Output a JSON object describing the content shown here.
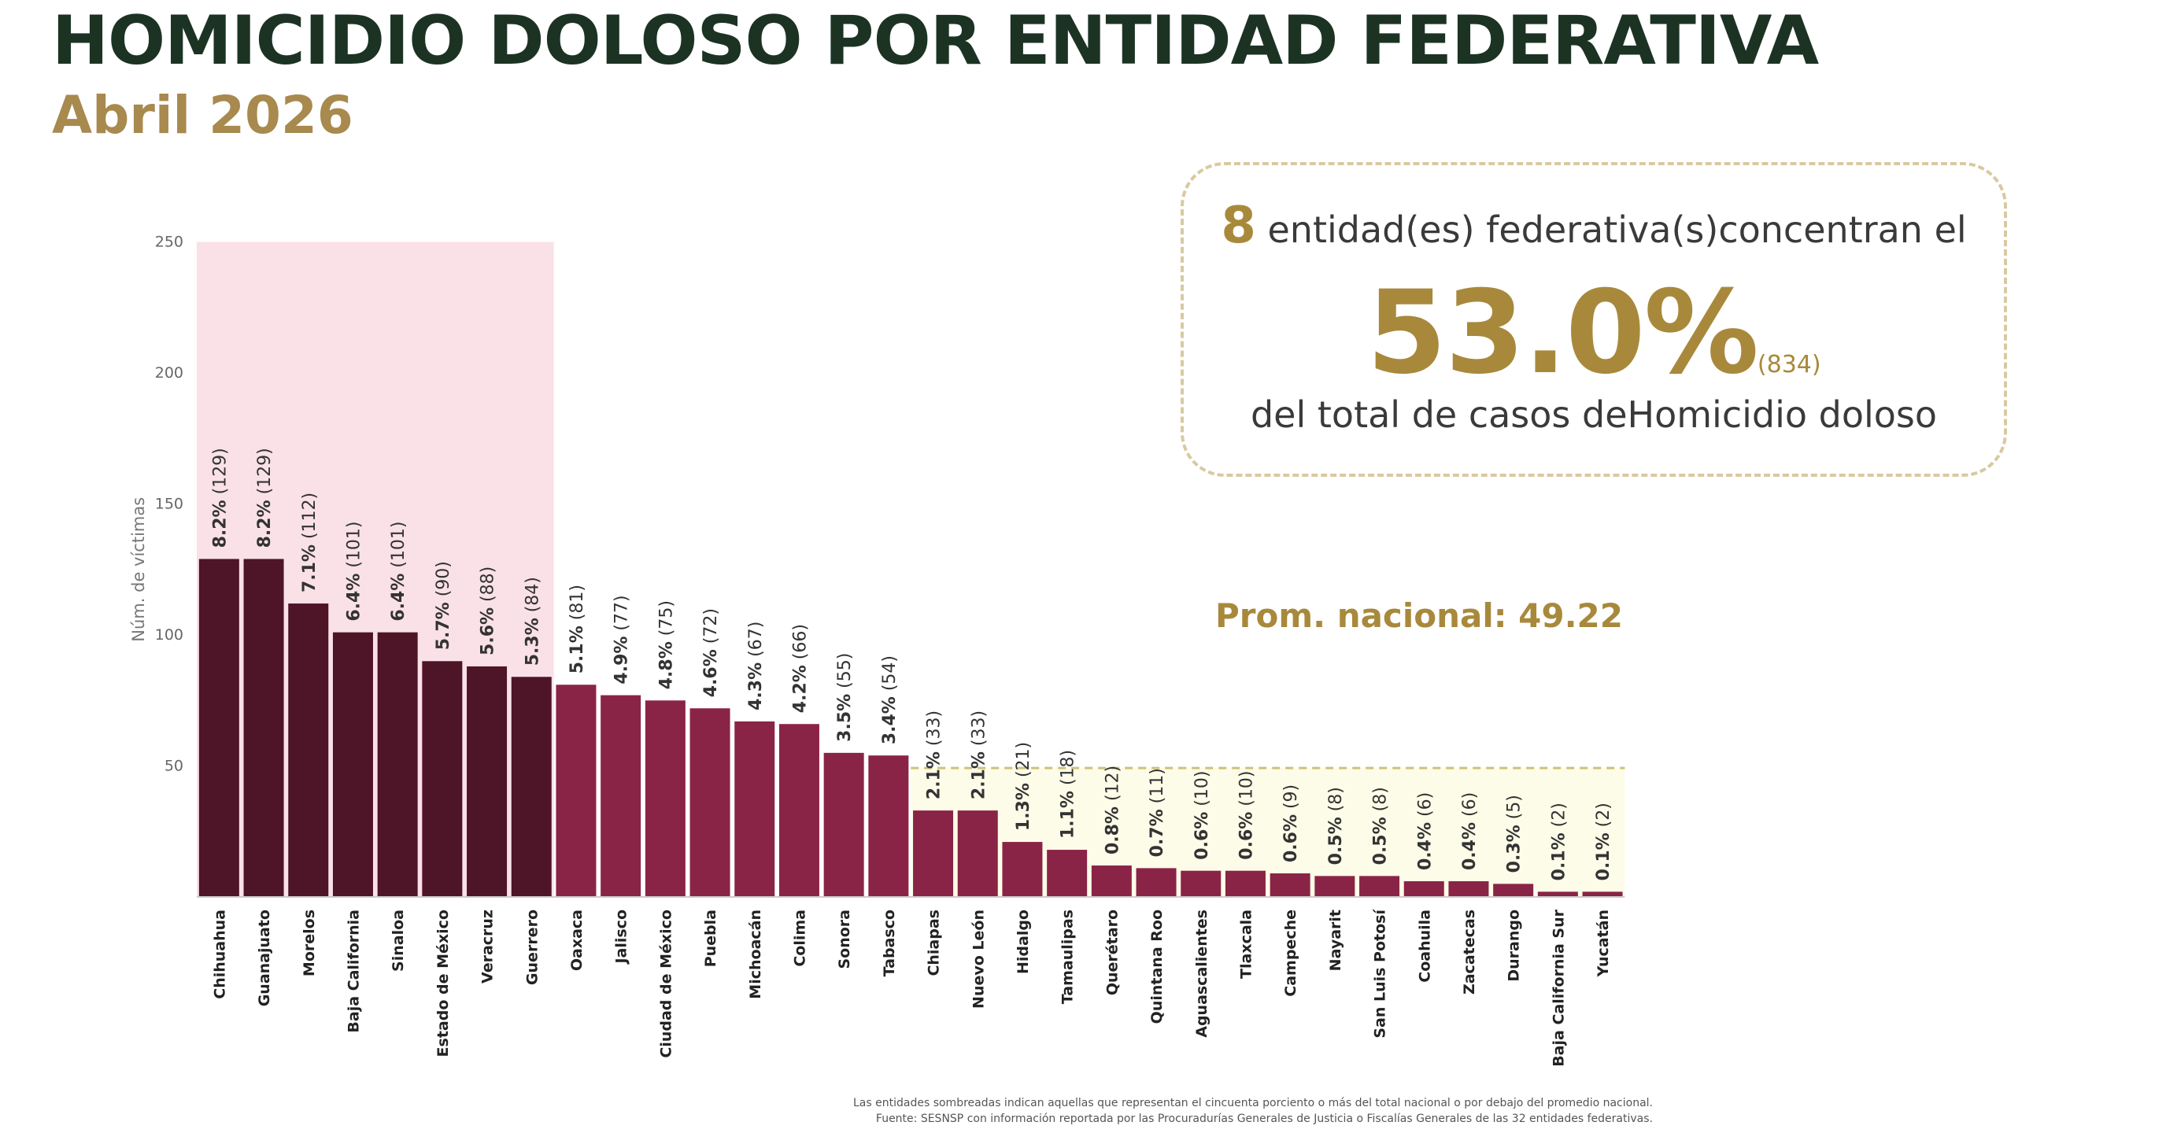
{
  "title": "HOMICIDIO DOLOSO POR ENTIDAD FEDERATIVA",
  "subtitle": "Abril 2026",
  "callout": {
    "count": "8",
    "line1": " entidad(es) federativa(s)concentran el",
    "percent": "53.0%",
    "absolute": "(834)",
    "line3": "del total de casos deHomicidio doloso"
  },
  "average_label": "Prom. nacional: 49.22",
  "footnote": {
    "line1": "Las entidades sombreadas indican aquellas que representan el cincuenta porciento o más del total nacional o por debajo del promedio nacional.",
    "line2": "Fuente: SESNSP con información reportada por las Procuradurías Generales de Justicia o Fiscalías Generales de las 32 entidades federativas."
  },
  "colors": {
    "title": "#1c3324",
    "accent_gold": "#a8893c",
    "bar_top": "#4e1428",
    "bar_rest": "#8a2446",
    "shade_top": "#f9e1e7",
    "shade_below_avg": "#fdfce8",
    "avg_line": "#cfc278"
  },
  "chart_data": {
    "type": "bar",
    "ylabel": "Núm. de víctimas",
    "ylim": [
      0,
      250
    ],
    "yticks": [
      50,
      100,
      150,
      200,
      250
    ],
    "average": 49.22,
    "top_group_count": 8,
    "grid": false,
    "categories": [
      "Chihuahua",
      "Guanajuato",
      "Morelos",
      "Baja California",
      "Sinaloa",
      "Estado de México",
      "Veracruz",
      "Guerrero",
      "Oaxaca",
      "Jalisco",
      "Ciudad de México",
      "Puebla",
      "Michoacán",
      "Colima",
      "Sonora",
      "Tabasco",
      "Chiapas",
      "Nuevo León",
      "Hidalgo",
      "Tamaulipas",
      "Querétaro",
      "Quintana Roo",
      "Aguascalientes",
      "Tlaxcala",
      "Campeche",
      "Nayarit",
      "San Luis Potosí",
      "Coahuila",
      "Zacatecas",
      "Durango",
      "Baja California Sur",
      "Yucatán"
    ],
    "values": [
      129,
      129,
      112,
      101,
      101,
      90,
      88,
      84,
      81,
      77,
      75,
      72,
      67,
      66,
      55,
      54,
      33,
      33,
      21,
      18,
      12,
      11,
      10,
      10,
      9,
      8,
      8,
      6,
      6,
      5,
      2,
      2
    ],
    "percents": [
      "8.2%",
      "8.2%",
      "7.1%",
      "6.4%",
      "6.4%",
      "5.7%",
      "5.6%",
      "5.3%",
      "5.1%",
      "4.9%",
      "4.8%",
      "4.6%",
      "4.3%",
      "4.2%",
      "3.5%",
      "3.4%",
      "2.1%",
      "2.1%",
      "1.3%",
      "1.1%",
      "0.8%",
      "0.7%",
      "0.6%",
      "0.6%",
      "0.6%",
      "0.5%",
      "0.5%",
      "0.4%",
      "0.4%",
      "0.3%",
      "0.1%",
      "0.1%"
    ]
  }
}
